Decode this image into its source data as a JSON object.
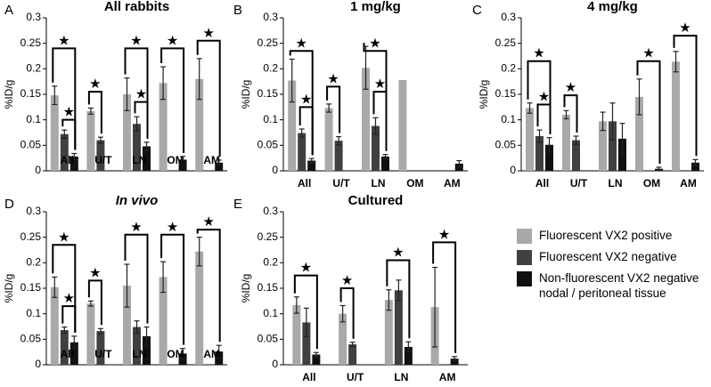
{
  "colors": {
    "positive": "#a9a9a9",
    "negative": "#404040",
    "nonfluor": "#111111"
  },
  "legend": [
    {
      "key": "positive",
      "label": "Fluorescent VX2 positive"
    },
    {
      "key": "negative",
      "label": "Fluorescent VX2 negative"
    },
    {
      "key": "nonfluor",
      "label": "Non-fluorescent VX2 negative nodal / peritoneal tissue"
    }
  ],
  "chart_data": [
    {
      "type": "bar",
      "panel_letter": "A",
      "title": "All rabbits",
      "title_italic": false,
      "ylabel": "%ID/g",
      "ylim": [
        0,
        0.3
      ],
      "yticks": [
        "0",
        "0.05",
        "0.1",
        "0.15",
        "0.2",
        "0.25",
        "0.3"
      ],
      "categories": [
        "All",
        "U/T",
        "LN",
        "OM",
        "AM"
      ],
      "series": [
        {
          "key": "positive",
          "values": [
            0.148,
            0.117,
            0.15,
            0.172,
            0.18
          ],
          "errors": [
            0.018,
            0.006,
            0.032,
            0.032,
            0.04
          ]
        },
        {
          "key": "negative",
          "values": [
            0.072,
            0.06,
            0.092,
            null,
            null
          ],
          "errors": [
            0.008,
            0.006,
            0.014,
            null,
            null
          ]
        },
        {
          "key": "nonfluor",
          "values": [
            0.028,
            null,
            0.048,
            0.022,
            0.016
          ],
          "errors": [
            0.006,
            null,
            0.008,
            0.006,
            0.005
          ]
        }
      ],
      "significance": [
        {
          "cat": 0,
          "from": "positive",
          "to": "nonfluor",
          "y": 0.24
        },
        {
          "cat": 0,
          "from": "negative",
          "to": "nonfluor",
          "y": 0.1
        },
        {
          "cat": 1,
          "from": "positive",
          "to": "negative",
          "y": 0.155
        },
        {
          "cat": 2,
          "from": "positive",
          "to": "nonfluor",
          "y": 0.24
        },
        {
          "cat": 2,
          "from": "negative",
          "to": "nonfluor",
          "y": 0.135
        },
        {
          "cat": 3,
          "from": "positive",
          "to": "nonfluor",
          "y": 0.24
        },
        {
          "cat": 4,
          "from": "positive",
          "to": "nonfluor",
          "y": 0.255
        }
      ]
    },
    {
      "type": "bar",
      "panel_letter": "B",
      "title": "1 mg/kg",
      "title_italic": false,
      "ylabel": "%ID/g",
      "ylim": [
        0,
        0.3
      ],
      "yticks": [
        "0",
        "0.05",
        "0.1",
        "0.15",
        "0.2",
        "0.25",
        "0.3"
      ],
      "categories": [
        "All",
        "U/T",
        "LN",
        "OM",
        "AM"
      ],
      "series": [
        {
          "key": "positive",
          "values": [
            0.177,
            0.123,
            0.202,
            0.178,
            null
          ],
          "errors": [
            0.042,
            0.008,
            0.042,
            null,
            null
          ]
        },
        {
          "key": "negative",
          "values": [
            0.074,
            0.059,
            0.088,
            null,
            null
          ],
          "errors": [
            0.008,
            0.008,
            0.016,
            null,
            null
          ]
        },
        {
          "key": "nonfluor",
          "values": [
            0.02,
            null,
            0.028,
            null,
            0.014
          ],
          "errors": [
            0.004,
            null,
            0.004,
            null,
            0.006
          ]
        }
      ],
      "significance": [
        {
          "cat": 0,
          "from": "positive",
          "to": "nonfluor",
          "y": 0.235
        },
        {
          "cat": 0,
          "from": "negative",
          "to": "nonfluor",
          "y": 0.125
        },
        {
          "cat": 1,
          "from": "positive",
          "to": "negative",
          "y": 0.165
        },
        {
          "cat": 2,
          "from": "positive",
          "to": "nonfluor",
          "y": 0.235
        },
        {
          "cat": 2,
          "from": "negative",
          "to": "nonfluor",
          "y": 0.155
        }
      ]
    },
    {
      "type": "bar",
      "panel_letter": "C",
      "title": "4 mg/kg",
      "title_italic": false,
      "ylabel": "%ID/g",
      "ylim": [
        0,
        0.3
      ],
      "yticks": [
        "0",
        "0.05",
        "0.1",
        "0.15",
        "0.2",
        "0.25",
        "0.3"
      ],
      "categories": [
        "All",
        "U/T",
        "LN",
        "OM",
        "AM"
      ],
      "series": [
        {
          "key": "positive",
          "values": [
            0.123,
            0.11,
            0.097,
            0.145,
            0.214
          ],
          "errors": [
            0.01,
            0.008,
            0.018,
            0.035,
            0.02
          ]
        },
        {
          "key": "negative",
          "values": [
            0.068,
            0.06,
            0.097,
            null,
            null
          ],
          "errors": [
            0.012,
            0.008,
            0.036,
            null,
            null
          ]
        },
        {
          "key": "nonfluor",
          "values": [
            0.051,
            null,
            0.063,
            0.004,
            0.016
          ],
          "errors": [
            0.014,
            null,
            0.03,
            0.003,
            0.006
          ]
        }
      ],
      "significance": [
        {
          "cat": 0,
          "from": "positive",
          "to": "nonfluor",
          "y": 0.215
        },
        {
          "cat": 0,
          "from": "negative",
          "to": "nonfluor",
          "y": 0.13
        },
        {
          "cat": 1,
          "from": "positive",
          "to": "negative",
          "y": 0.148
        },
        {
          "cat": 3,
          "from": "positive",
          "to": "nonfluor",
          "y": 0.215
        },
        {
          "cat": 4,
          "from": "positive",
          "to": "nonfluor",
          "y": 0.265
        }
      ]
    },
    {
      "type": "bar",
      "panel_letter": "D",
      "title": "In vivo",
      "title_italic": true,
      "ylabel": "%ID/g",
      "ylim": [
        0,
        0.3
      ],
      "yticks": [
        "0",
        "0.05",
        "0.1",
        "0.15",
        "0.2",
        "0.25",
        "0.3"
      ],
      "categories": [
        "All",
        "U/T",
        "LN",
        "OM",
        "AM"
      ],
      "series": [
        {
          "key": "positive",
          "values": [
            0.152,
            0.12,
            0.155,
            0.172,
            0.222
          ],
          "errors": [
            0.02,
            0.005,
            0.042,
            0.03,
            0.028
          ]
        },
        {
          "key": "negative",
          "values": [
            0.068,
            0.066,
            0.074,
            null,
            null
          ],
          "errors": [
            0.006,
            0.005,
            0.012,
            null,
            null
          ]
        },
        {
          "key": "nonfluor",
          "values": [
            0.044,
            null,
            0.056,
            0.022,
            0.026
          ],
          "errors": [
            0.012,
            null,
            0.018,
            0.01,
            0.012
          ]
        }
      ],
      "significance": [
        {
          "cat": 0,
          "from": "positive",
          "to": "nonfluor",
          "y": 0.235
        },
        {
          "cat": 0,
          "from": "negative",
          "to": "nonfluor",
          "y": 0.115
        },
        {
          "cat": 1,
          "from": "positive",
          "to": "negative",
          "y": 0.165
        },
        {
          "cat": 2,
          "from": "positive",
          "to": "nonfluor",
          "y": 0.255
        },
        {
          "cat": 3,
          "from": "positive",
          "to": "nonfluor",
          "y": 0.255
        },
        {
          "cat": 4,
          "from": "positive",
          "to": "nonfluor",
          "y": 0.265
        }
      ]
    },
    {
      "type": "bar",
      "panel_letter": "E",
      "title": "Cultured",
      "title_italic": false,
      "ylabel": "%ID/g",
      "ylim": [
        0,
        0.3
      ],
      "yticks": [
        "0",
        "0.05",
        "0.1",
        "0.15",
        "0.2",
        "0.25",
        "0.3"
      ],
      "categories": [
        "All",
        "U/T",
        "LN",
        "AM"
      ],
      "series": [
        {
          "key": "positive",
          "values": [
            0.117,
            0.1,
            0.127,
            0.113
          ],
          "errors": [
            0.016,
            0.016,
            0.02,
            0.078
          ]
        },
        {
          "key": "negative",
          "values": [
            0.083,
            0.04,
            0.146,
            null
          ],
          "errors": [
            0.028,
            0.004,
            0.02,
            null
          ]
        },
        {
          "key": "nonfluor",
          "values": [
            0.02,
            null,
            0.035,
            0.012
          ],
          "errors": [
            0.004,
            null,
            0.01,
            0.004
          ]
        }
      ],
      "significance": [
        {
          "cat": 0,
          "from": "positive",
          "to": "nonfluor",
          "y": 0.175
        },
        {
          "cat": 1,
          "from": "positive",
          "to": "negative",
          "y": 0.15
        },
        {
          "cat": 2,
          "from": "positive",
          "to": "nonfluor",
          "y": 0.205
        },
        {
          "cat": 3,
          "from": "positive",
          "to": "nonfluor",
          "y": 0.24
        }
      ]
    }
  ]
}
